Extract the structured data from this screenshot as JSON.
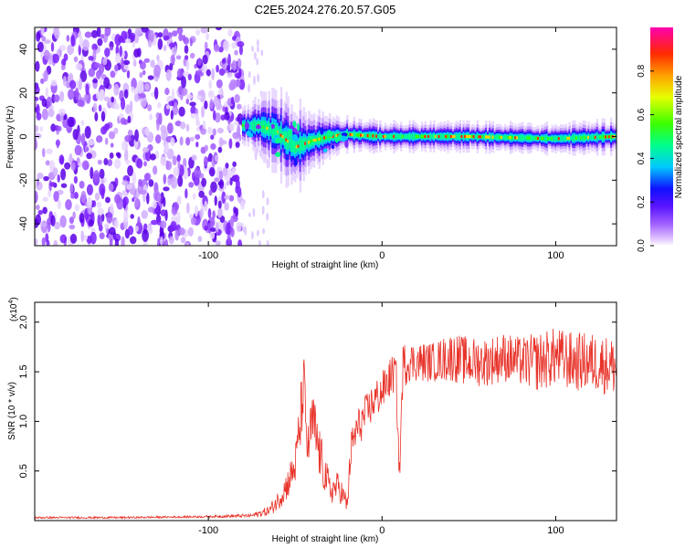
{
  "figure": {
    "title": "C2E5.2024.276.20.57.G05"
  },
  "chart_data": [
    {
      "type": "heatmap",
      "xlabel": "Height of straight line (km)",
      "ylabel": "Frequency (Hz)",
      "xlim": [
        -200,
        135
      ],
      "ylim": [
        -50,
        50
      ],
      "xticks": [
        -100,
        0,
        100
      ],
      "xtick_labels": [
        "-100",
        "0",
        "100"
      ],
      "yticks": [
        40,
        20,
        0,
        -20,
        -40
      ],
      "ytick_labels": [
        "40",
        "20",
        "0",
        "-20",
        "-40"
      ],
      "colorbar": {
        "label": "Normalized spectral amplitude",
        "range": [
          0,
          1
        ],
        "ticks": [
          0.0,
          0.2,
          0.4,
          0.6,
          0.8
        ],
        "tick_labels": [
          "0.0",
          "0.2",
          "0.4",
          "0.6",
          "0.8"
        ]
      },
      "noise_region": {
        "x_range": [
          -200,
          -80
        ],
        "freq_range": [
          -50,
          50
        ]
      },
      "signal_band": [
        {
          "x": -80,
          "freq": 5,
          "halfwidth": 3
        },
        {
          "x": -70,
          "freq": 5,
          "halfwidth": 5
        },
        {
          "x": -60,
          "freq": 2,
          "halfwidth": 7
        },
        {
          "x": -50,
          "freq": -5,
          "halfwidth": 8
        },
        {
          "x": -40,
          "freq": -2,
          "halfwidth": 5
        },
        {
          "x": -30,
          "freq": 0,
          "halfwidth": 4
        },
        {
          "x": -20,
          "freq": 1,
          "halfwidth": 3
        },
        {
          "x": 0,
          "freq": 0,
          "halfwidth": 2.5
        },
        {
          "x": 50,
          "freq": 0,
          "halfwidth": 2.5
        },
        {
          "x": 100,
          "freq": -1,
          "halfwidth": 2.5
        },
        {
          "x": 135,
          "freq": 0,
          "halfwidth": 3
        }
      ]
    },
    {
      "type": "line",
      "xlabel": "Height of straight line (km)",
      "ylabel": "SNR (10 * v/v)",
      "y_multiplier_label": "(x10",
      "y_multiplier_exp": "4",
      "y_multiplier_close": ")",
      "xlim": [
        -200,
        135
      ],
      "ylim": [
        0,
        2.2
      ],
      "xticks": [
        -100,
        0,
        100
      ],
      "xtick_labels": [
        "-100",
        "0",
        "100"
      ],
      "yticks": [
        0.5,
        1.0,
        1.5,
        2.0
      ],
      "ytick_labels": [
        "0.5",
        "1.0",
        "1.5",
        "2.0"
      ],
      "series": [
        {
          "color": "#e8332a",
          "x": [
            -200,
            -150,
            -100,
            -75,
            -65,
            -60,
            -55,
            -50,
            -47,
            -45,
            -43,
            -40,
            -35,
            -30,
            -25,
            -20,
            -18,
            -15,
            -10,
            -5,
            0,
            5,
            8,
            10,
            12,
            15,
            20,
            30,
            40,
            50,
            60,
            70,
            80,
            90,
            100,
            110,
            120,
            135
          ],
          "y": [
            0.03,
            0.03,
            0.04,
            0.05,
            0.1,
            0.2,
            0.35,
            0.55,
            1.0,
            1.4,
            0.7,
            1.0,
            0.6,
            0.3,
            0.35,
            0.15,
            0.7,
            0.9,
            1.05,
            1.2,
            1.3,
            1.45,
            1.5,
            0.45,
            1.55,
            1.6,
            1.6,
            1.6,
            1.65,
            1.6,
            1.6,
            1.65,
            1.6,
            1.6,
            1.65,
            1.6,
            1.6,
            1.55
          ],
          "spread": [
            0.01,
            0.01,
            0.01,
            0.02,
            0.05,
            0.1,
            0.15,
            0.2,
            0.35,
            0.3,
            0.2,
            0.35,
            0.25,
            0.15,
            0.15,
            0.1,
            0.2,
            0.2,
            0.2,
            0.2,
            0.2,
            0.2,
            0.2,
            0.15,
            0.25,
            0.2,
            0.2,
            0.2,
            0.25,
            0.25,
            0.25,
            0.25,
            0.25,
            0.3,
            0.3,
            0.3,
            0.3,
            0.3
          ]
        }
      ]
    }
  ]
}
